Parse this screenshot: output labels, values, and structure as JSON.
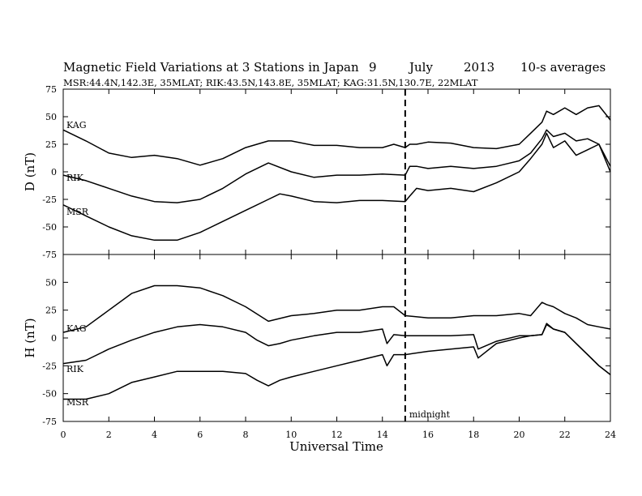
{
  "header": {
    "title": "Magnetic Field Variations at 3 Stations in Japan",
    "day": "9",
    "month": "July",
    "year": "2013",
    "averaging": "10-s averages",
    "stations_line": "MSR:44.4N,142.3E, 35MLAT;  RIK:43.5N,143.8E, 35MLAT;  KAG:31.5N,130.7E, 22MLAT"
  },
  "chart_data": {
    "type": "line",
    "xlabel": "Universal Time",
    "xlim": [
      0,
      24
    ],
    "xticks": [
      0,
      2,
      4,
      6,
      8,
      10,
      12,
      14,
      16,
      18,
      20,
      22,
      24
    ],
    "xtick_labels": [
      "0",
      "2",
      "4",
      "6",
      "8",
      "10",
      "12",
      "14",
      "16",
      "18",
      "20",
      "22",
      "24"
    ],
    "marker": {
      "x": 15,
      "label": "midnight",
      "style": "dashed"
    },
    "panels": [
      {
        "ylabel": "D (nT)",
        "ylim": [
          -75,
          75
        ],
        "yticks": [
          -75,
          -50,
          -25,
          0,
          25,
          50,
          75
        ],
        "ytick_labels": [
          "-75",
          "-50",
          "-25",
          "0",
          "25",
          "50",
          "75"
        ],
        "series": [
          {
            "name": "KAG",
            "x": [
              0,
              1,
              2,
              3,
              4,
              5,
              6,
              7,
              8,
              9,
              10,
              11,
              12,
              13,
              14,
              14.5,
              15,
              15.2,
              15.5,
              16,
              17,
              18,
              19,
              20,
              20.5,
              21,
              21.2,
              21.5,
              22,
              22.5,
              23,
              23.5,
              24
            ],
            "y": [
              38,
              28,
              17,
              13,
              15,
              12,
              6,
              12,
              22,
              28,
              28,
              24,
              24,
              22,
              22,
              25,
              22,
              25,
              25,
              27,
              26,
              22,
              21,
              25,
              35,
              45,
              55,
              52,
              58,
              52,
              58,
              60,
              47
            ]
          },
          {
            "name": "RIK",
            "x": [
              0,
              1,
              2,
              3,
              4,
              5,
              6,
              7,
              8,
              9,
              10,
              11,
              12,
              13,
              14,
              15,
              15.2,
              15.5,
              16,
              17,
              18,
              19,
              20,
              20.5,
              21,
              21.2,
              21.5,
              22,
              22.5,
              23,
              23.5,
              24
            ],
            "y": [
              -3,
              -8,
              -15,
              -22,
              -27,
              -28,
              -25,
              -15,
              -2,
              8,
              0,
              -5,
              -3,
              -3,
              -2,
              -3,
              5,
              5,
              3,
              5,
              3,
              5,
              10,
              17,
              30,
              38,
              32,
              35,
              28,
              30,
              25,
              5
            ]
          },
          {
            "name": "MSR",
            "x": [
              0,
              1,
              2,
              3,
              4,
              5,
              6,
              7,
              8,
              9,
              9.5,
              10,
              11,
              12,
              13,
              14,
              15,
              15.2,
              15.5,
              16,
              17,
              18,
              19,
              20,
              20.5,
              21,
              21.2,
              21.5,
              22,
              22.5,
              23,
              23.5,
              24
            ],
            "y": [
              -30,
              -40,
              -50,
              -58,
              -62,
              -62,
              -55,
              -45,
              -35,
              -25,
              -20,
              -22,
              -27,
              -28,
              -26,
              -26,
              -27,
              -22,
              -15,
              -17,
              -15,
              -18,
              -10,
              0,
              12,
              25,
              35,
              22,
              28,
              15,
              20,
              25,
              0
            ]
          }
        ]
      },
      {
        "ylabel": "H (nT)",
        "ylim": [
          -75,
          75
        ],
        "yticks": [
          -75,
          -50,
          -25,
          0,
          25,
          50,
          75
        ],
        "ytick_labels": [
          "-75",
          "-50",
          "-25",
          "0",
          "25",
          "50",
          "75"
        ],
        "series": [
          {
            "name": "KAG",
            "x": [
              0,
              1,
              2,
              3,
              4,
              5,
              6,
              7,
              8,
              9,
              10,
              11,
              12,
              13,
              14,
              14.5,
              15,
              16,
              17,
              18,
              19,
              20,
              20.5,
              21,
              21.2,
              21.5,
              22,
              22.5,
              23,
              23.5,
              24
            ],
            "y": [
              5,
              10,
              25,
              40,
              47,
              47,
              45,
              38,
              28,
              15,
              20,
              22,
              25,
              25,
              28,
              28,
              20,
              18,
              18,
              20,
              20,
              22,
              20,
              32,
              30,
              28,
              22,
              18,
              12,
              10,
              8
            ]
          },
          {
            "name": "RIK",
            "x": [
              0,
              1,
              2,
              3,
              4,
              5,
              6,
              7,
              8,
              8.5,
              9,
              9.5,
              10,
              11,
              12,
              13,
              14,
              14.2,
              14.5,
              15,
              16,
              17,
              18,
              18.2,
              19,
              20,
              20.5,
              21,
              21.2,
              21.5,
              22,
              22.5,
              23,
              23.5,
              24
            ],
            "y": [
              -23,
              -20,
              -10,
              -2,
              5,
              10,
              12,
              10,
              5,
              -2,
              -7,
              -5,
              -2,
              2,
              5,
              5,
              8,
              -5,
              3,
              2,
              2,
              2,
              3,
              -10,
              -3,
              2,
              2,
              3,
              13,
              8,
              5,
              -5,
              -15,
              -25,
              -33
            ]
          },
          {
            "name": "MSR",
            "x": [
              0,
              1,
              2,
              3,
              4,
              5,
              6,
              7,
              8,
              8.5,
              9,
              9.5,
              10,
              11,
              12,
              13,
              14,
              14.2,
              14.5,
              15,
              16,
              17,
              18,
              18.2,
              19,
              20,
              20.5,
              21,
              21.2,
              21.5,
              22,
              22.5,
              23,
              23.5,
              24
            ],
            "y": [
              -55,
              -55,
              -50,
              -40,
              -35,
              -30,
              -30,
              -30,
              -32,
              -38,
              -43,
              -38,
              -35,
              -30,
              -25,
              -20,
              -15,
              -25,
              -15,
              -15,
              -12,
              -10,
              -8,
              -18,
              -5,
              0,
              2,
              3,
              12,
              8,
              5,
              -5,
              -15,
              -25,
              -33
            ]
          }
        ]
      }
    ]
  }
}
